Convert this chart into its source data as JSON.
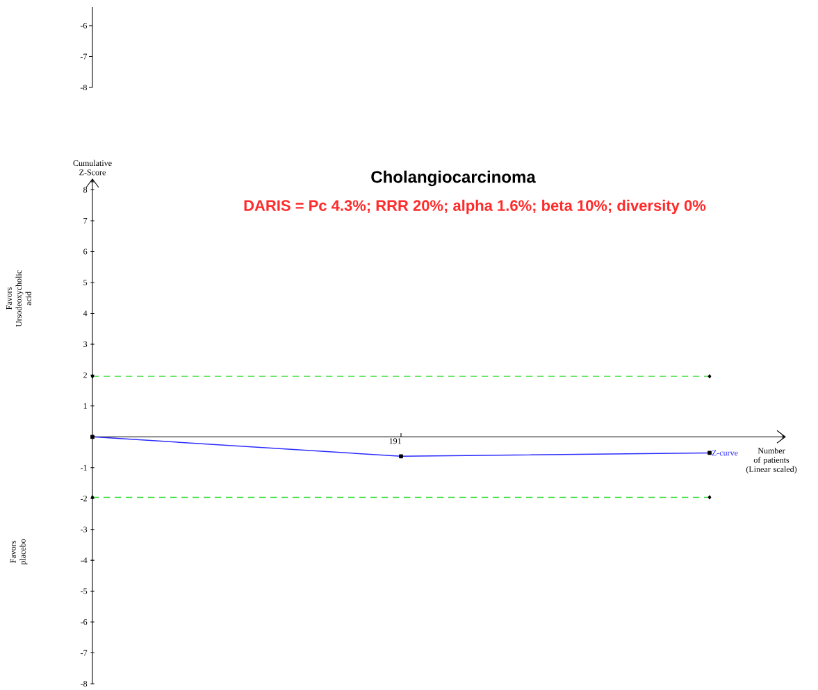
{
  "chart_data": [
    {
      "type": "other",
      "annotations": [
        "-6",
        "-7",
        "-8"
      ]
    },
    {
      "type": "line",
      "title": "Cholangiocarcinoma",
      "subtitle": "DARIS = Pc 4.3%; RRR 20%; alpha 1.6%; beta 10%; diversity 0%",
      "xlabel": "Number of patients (Linear scaled)",
      "ylabel": "Cumulative Z-Score",
      "annotations": [
        "Favors Ursodeoxycholic acid",
        "Favors placebo"
      ],
      "categories": [
        null,
        "191",
        null
      ],
      "ylim": [
        -8,
        8.35
      ],
      "yticks": [
        -8,
        -7,
        -6,
        -5,
        -4,
        -3,
        -2,
        -1,
        1,
        2,
        3,
        4,
        5,
        6,
        7,
        8
      ],
      "grid": false,
      "legend": false,
      "series": [
        {
          "name": "Z-curve",
          "color": "#2b2bff",
          "values": [
            0,
            -0.63,
            -0.52
          ],
          "marker": "square",
          "line_style": "solid"
        },
        {
          "color": "#33dd33",
          "values": [
            1.96,
            null,
            1.96
          ],
          "marker": "diamond",
          "line_style": "dashed"
        },
        {
          "color": "#33dd33",
          "values": [
            -1.96,
            null,
            -1.96
          ],
          "marker": "diamond",
          "line_style": "dashed"
        }
      ]
    }
  ]
}
